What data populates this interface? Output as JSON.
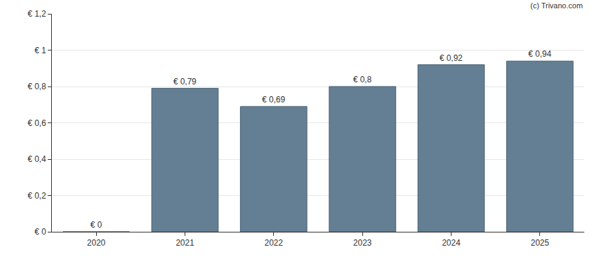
{
  "chart_data": {
    "type": "bar",
    "categories": [
      "2020",
      "2021",
      "2022",
      "2023",
      "2024",
      "2025"
    ],
    "values": [
      0,
      0.79,
      0.69,
      0.8,
      0.92,
      0.94
    ],
    "value_labels": [
      "€ 0",
      "€ 0,79",
      "€ 0,69",
      "€ 0,8",
      "€ 0,92",
      "€ 0,94"
    ],
    "data_labels": true,
    "color": "#647f94",
    "ylim": [
      0,
      1.2
    ],
    "yticks": [
      {
        "value": 0,
        "label": "€ 0"
      },
      {
        "value": 0.2,
        "label": "€ 0,2"
      },
      {
        "value": 0.4,
        "label": "€ 0,4"
      },
      {
        "value": 0.6,
        "label": "€ 0,6"
      },
      {
        "value": 0.8,
        "label": "€ 0,8"
      },
      {
        "value": 1,
        "label": "€ 1"
      },
      {
        "value": 1.2,
        "label": "€ 1,2"
      }
    ],
    "grid": true,
    "annotations": [
      "(c) Trivano.com"
    ]
  }
}
